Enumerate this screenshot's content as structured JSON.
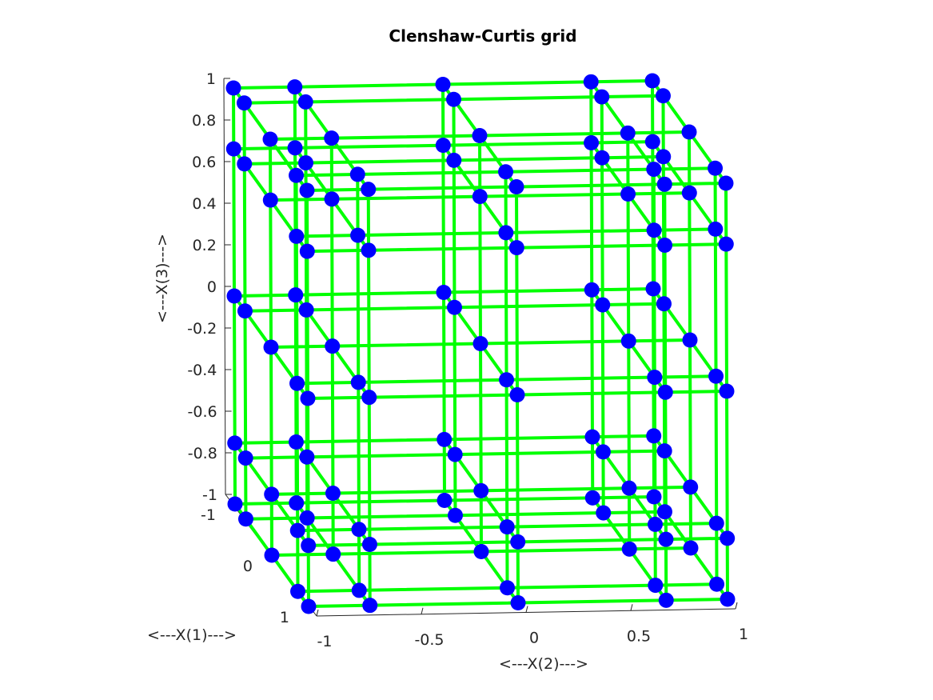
{
  "chart_data": {
    "type": "scatter3d",
    "title": "Clenshaw-Curtis grid",
    "xlabel": "<---X(1)--->",
    "ylabel": "<---X(2)--->",
    "zlabel": "<---X(3)--->",
    "x_ticks": [
      "-1",
      "0",
      "1"
    ],
    "y_ticks": [
      "-1",
      "-0.5",
      "0",
      "0.5",
      "1"
    ],
    "z_ticks": [
      "1",
      "0.8",
      "0.6",
      "0.4",
      "0.2",
      "0",
      "-0.2",
      "-0.4",
      "-0.6",
      "-0.8",
      "-1"
    ],
    "xlim": [
      -1,
      1
    ],
    "ylim": [
      -1,
      1
    ],
    "zlim": [
      -1,
      1
    ],
    "grid_levels": [
      -1,
      -0.7071,
      0,
      0.7071,
      1
    ],
    "line_color": "#00ff00",
    "marker_color": "#0000ff",
    "grid": false
  }
}
